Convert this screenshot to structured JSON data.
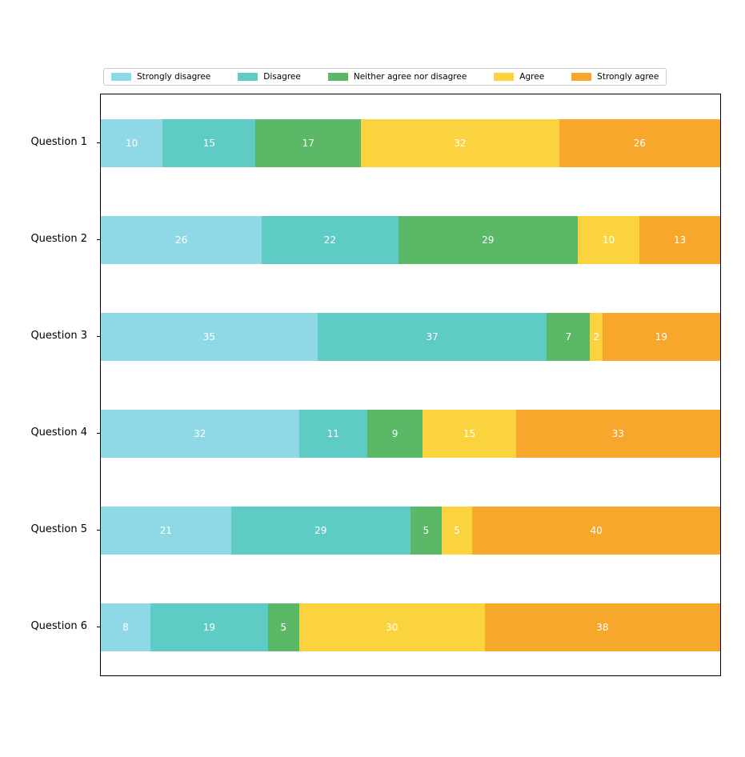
{
  "chart_data": {
    "type": "bar",
    "orientation": "horizontal",
    "stacked": true,
    "title": "",
    "xlabel": "",
    "ylabel": "",
    "xlim": [
      0,
      100
    ],
    "grid": false,
    "legend_position": "top",
    "value_label_color": "#ffffff",
    "categories": [
      "Question 1",
      "Question 2",
      "Question 3",
      "Question 4",
      "Question 5",
      "Question 6"
    ],
    "series": [
      {
        "name": "Strongly disagree",
        "color": "#8FD9E6",
        "values": [
          10,
          26,
          35,
          32,
          21,
          8
        ]
      },
      {
        "name": "Disagree",
        "color": "#5ECBC4",
        "values": [
          15,
          22,
          37,
          11,
          29,
          19
        ]
      },
      {
        "name": "Neither agree nor disagree",
        "color": "#5BB867",
        "values": [
          17,
          29,
          7,
          9,
          5,
          5
        ]
      },
      {
        "name": "Agree",
        "color": "#FAD33E",
        "values": [
          32,
          10,
          2,
          15,
          5,
          30
        ]
      },
      {
        "name": "Strongly agree",
        "color": "#F6A72C",
        "values": [
          26,
          13,
          19,
          33,
          40,
          38
        ]
      }
    ]
  }
}
